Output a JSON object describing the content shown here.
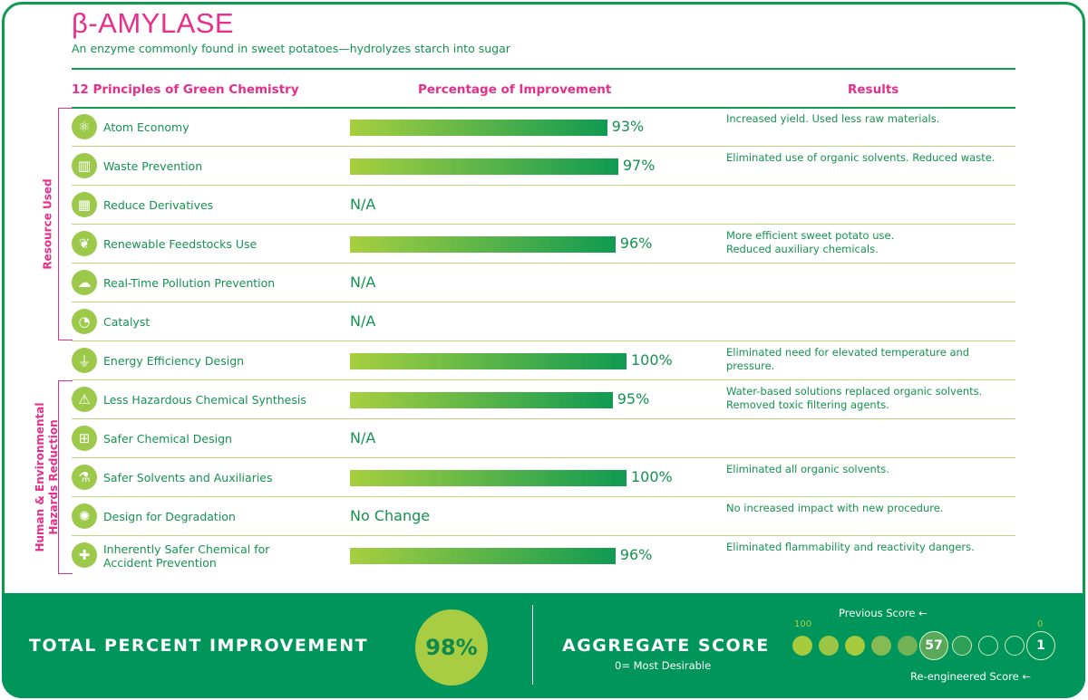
{
  "title": "β-AMYLASE",
  "subtitle": "An enzyme commonly found in sweet potatoes—hydrolyzes starch into sugar",
  "headers": {
    "principles": "12 Principles of Green Chemistry",
    "improvement": "Percentage of Improvement",
    "results": "Results"
  },
  "groups": {
    "resource": "Resource Used",
    "hazard_line1": "Human & Environmental",
    "hazard_line2": "Hazards Reduction"
  },
  "rows": [
    {
      "name": "Atom Economy",
      "icon": "atom-icon",
      "percent": 93,
      "value": "93%",
      "result": "Increased yield. Used less raw materials."
    },
    {
      "name": "Waste Prevention",
      "icon": "trash-icon",
      "percent": 97,
      "value": "97%",
      "result": "Eliminated use of organic solvents. Reduced waste."
    },
    {
      "name": "Reduce Derivatives",
      "icon": "blocks-icon",
      "value": "N/A",
      "result": ""
    },
    {
      "name": "Renewable Feedstocks Use",
      "icon": "plant-icon",
      "percent": 96,
      "value": "96%",
      "result": "More efficient sweet potato use.",
      "result2": "Reduced auxiliary chemicals."
    },
    {
      "name": "Real-Time Pollution Prevention",
      "icon": "cloud-icon",
      "value": "N/A",
      "result": ""
    },
    {
      "name": "Catalyst",
      "icon": "clock-icon",
      "value": "N/A",
      "result": ""
    },
    {
      "name": "Energy Efficiency Design",
      "icon": "plug-icon",
      "percent": 100,
      "value": "100%",
      "result": "Eliminated need for elevated temperature and pressure."
    },
    {
      "name": "Less Hazardous Chemical Synthesis",
      "icon": "warning-icon",
      "percent": 95,
      "value": "95%",
      "result": "Water-based solutions replaced organic solvents.",
      "result2": "Removed toxic filtering agents."
    },
    {
      "name": "Safer Chemical Design",
      "icon": "first-aid-icon",
      "value": "N/A",
      "result": ""
    },
    {
      "name": "Safer Solvents and Auxiliaries",
      "icon": "flask-icon",
      "percent": 100,
      "value": "100%",
      "result": "Eliminated all organic solvents."
    },
    {
      "name": "Design for Degradation",
      "icon": "molecule-icon",
      "value": "No Change",
      "result": "No increased impact with new procedure."
    },
    {
      "name": "Inherently Safer Chemical for",
      "name2": "Accident Prevention",
      "icon": "plus-icon",
      "percent": 96,
      "value": "96%",
      "result": "Eliminated flammability and reactivity dangers."
    }
  ],
  "footer": {
    "total_label": "TOTAL PERCENT IMPROVEMENT",
    "total_value": "98%",
    "aggregate_label": "AGGREGATE SCORE",
    "aggregate_note": "0= Most Desirable",
    "scale_max": "100",
    "scale_min": "0",
    "previous_label": "Previous Score",
    "previous_value": "57",
    "reengineered_label": "Re-engineered Score",
    "reengineered_value": "1"
  },
  "colors": {
    "accent": "#e62e8b",
    "green": "#0f9a52",
    "light_green": "#a8cd43"
  }
}
